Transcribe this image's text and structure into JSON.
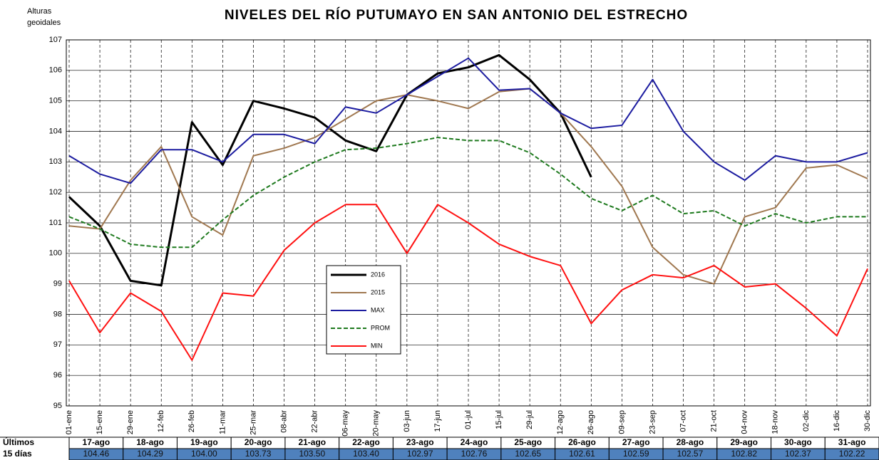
{
  "chart_data": {
    "type": "line",
    "title": "NIVELES DEL RÍO PUTUMAYO EN SAN ANTONIO DEL ESTRECHO",
    "y_label": "Alturas geoidales",
    "categories": [
      "01-ene",
      "15-ene",
      "29-ene",
      "12-feb",
      "26-feb",
      "11-mar",
      "25-mar",
      "08-abr",
      "22-abr",
      "06-may",
      "20-may",
      "03-jun",
      "17-jun",
      "01-jul",
      "15-jul",
      "29-jul",
      "12-ago",
      "26-ago",
      "09-sep",
      "23-sep",
      "07-oct",
      "21-oct",
      "04-nov",
      "18-nov",
      "02-dic",
      "16-dic",
      "30-dic"
    ],
    "series": [
      {
        "name": "2016",
        "color": "#000000",
        "width": 3,
        "dashed": false,
        "values": [
          101.85,
          100.9,
          99.1,
          98.95,
          104.3,
          102.9,
          105.0,
          104.75,
          104.45,
          103.7,
          103.35,
          105.2,
          105.9,
          106.1,
          106.5,
          105.7,
          104.6,
          102.5,
          null,
          null,
          null,
          null,
          null,
          null,
          null,
          null,
          null
        ]
      },
      {
        "name": "2015",
        "color": "#a07850",
        "width": 2,
        "dashed": false,
        "values": [
          100.9,
          100.8,
          102.4,
          103.5,
          101.2,
          100.6,
          103.2,
          103.45,
          103.8,
          104.4,
          105.0,
          105.2,
          105.0,
          104.75,
          105.3,
          105.4,
          104.6,
          103.5,
          102.2,
          100.2,
          99.3,
          99.0,
          101.2,
          101.5,
          102.8,
          102.9,
          102.45
        ]
      },
      {
        "name": "MAX",
        "color": "#1c1ca0",
        "width": 2,
        "dashed": false,
        "values": [
          103.2,
          102.6,
          102.3,
          103.4,
          103.4,
          103.0,
          103.9,
          103.9,
          103.6,
          104.8,
          104.6,
          105.2,
          105.8,
          106.4,
          105.35,
          105.4,
          104.6,
          104.1,
          104.2,
          105.7,
          104.0,
          103.0,
          102.4,
          103.2,
          103.0,
          103.0,
          103.3
        ]
      },
      {
        "name": "PROM",
        "color": "#1e7a1e",
        "width": 2,
        "dashed": true,
        "values": [
          101.2,
          100.8,
          100.3,
          100.2,
          100.2,
          101.1,
          101.9,
          102.5,
          103.0,
          103.4,
          103.45,
          103.6,
          103.8,
          103.7,
          103.7,
          103.3,
          102.6,
          101.8,
          101.4,
          101.9,
          101.3,
          101.4,
          100.9,
          101.3,
          101.0,
          101.2,
          101.2
        ]
      },
      {
        "name": "MIN",
        "color": "#ff1010",
        "width": 2,
        "dashed": false,
        "values": [
          99.1,
          97.4,
          98.7,
          98.1,
          96.5,
          98.7,
          98.6,
          100.1,
          101.0,
          101.6,
          101.6,
          100.0,
          101.6,
          101.0,
          100.3,
          99.9,
          99.6,
          97.7,
          98.8,
          99.3,
          99.2,
          99.6,
          98.9,
          99.0,
          98.2,
          97.3,
          99.5
        ]
      }
    ],
    "ylim": [
      95,
      107
    ],
    "yticks": [
      95,
      96,
      97,
      98,
      99,
      100,
      101,
      102,
      103,
      104,
      105,
      106,
      107
    ],
    "grid": true,
    "legend": "center",
    "table": {
      "row_labels": [
        "Últimos",
        "15 días"
      ],
      "dates": [
        "17-ago",
        "18-ago",
        "19-ago",
        "20-ago",
        "21-ago",
        "22-ago",
        "23-ago",
        "24-ago",
        "25-ago",
        "26-ago",
        "27-ago",
        "28-ago",
        "29-ago",
        "30-ago",
        "31-ago"
      ],
      "levels": [
        "104.46",
        "104.29",
        "104.00",
        "103.73",
        "103.50",
        "103.40",
        "102.97",
        "102.76",
        "102.65",
        "102.61",
        "102.59",
        "102.57",
        "102.82",
        "102.37",
        "102.22"
      ]
    }
  }
}
